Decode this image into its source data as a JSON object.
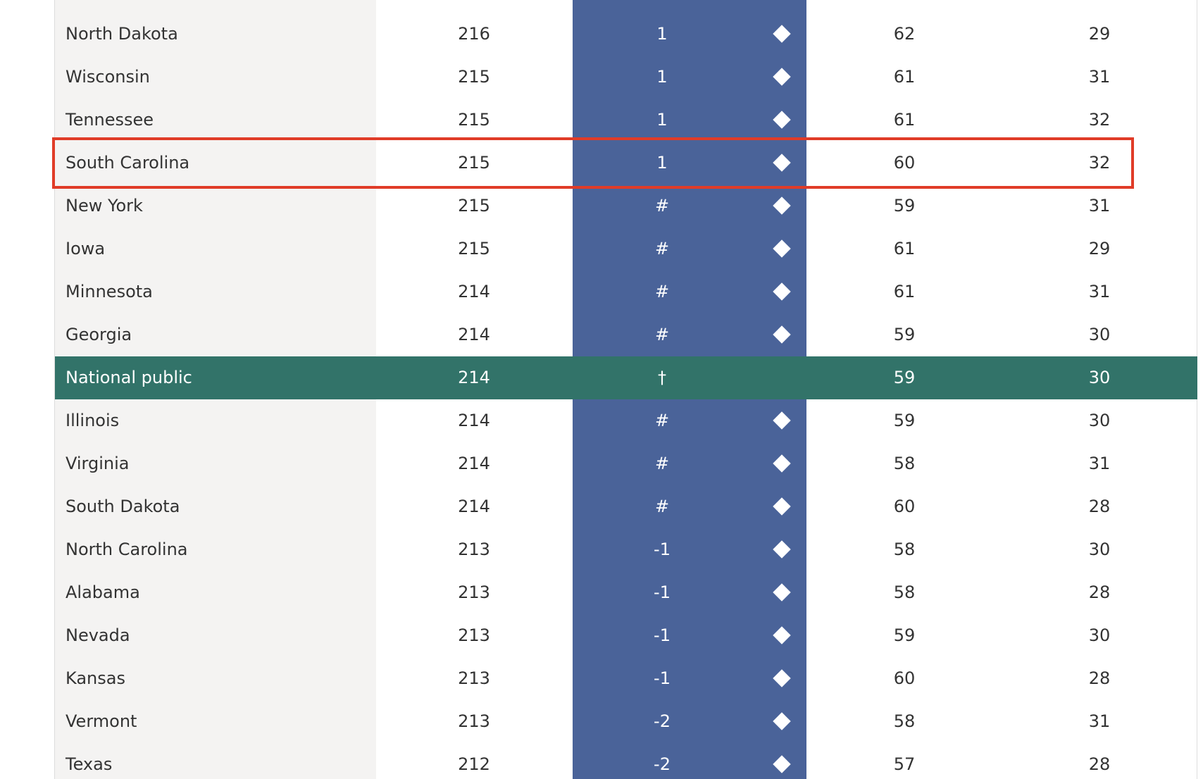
{
  "table": {
    "rows": [
      [
        "North Dakota",
        "216",
        "1",
        "62",
        "29"
      ],
      [
        "Wisconsin",
        "215",
        "1",
        "61",
        "31"
      ],
      [
        "Tennessee",
        "215",
        "1",
        "61",
        "32"
      ],
      [
        "South Carolina",
        "215",
        "1",
        "60",
        "32"
      ],
      [
        "New York",
        "215",
        "#",
        "59",
        "31"
      ],
      [
        "Iowa",
        "215",
        "#",
        "61",
        "29"
      ],
      [
        "Minnesota",
        "214",
        "#",
        "61",
        "31"
      ],
      [
        "Georgia",
        "214",
        "#",
        "59",
        "30"
      ],
      [
        "National public",
        "214",
        "†",
        "59",
        "30"
      ],
      [
        "Illinois",
        "214",
        "#",
        "59",
        "30"
      ],
      [
        "Virginia",
        "214",
        "#",
        "58",
        "31"
      ],
      [
        "South Dakota",
        "214",
        "#",
        "60",
        "28"
      ],
      [
        "North Carolina",
        "213",
        "-1",
        "58",
        "30"
      ],
      [
        "Alabama",
        "213",
        "-1",
        "58",
        "28"
      ],
      [
        "Nevada",
        "213",
        "-1",
        "59",
        "30"
      ],
      [
        "Kansas",
        "213",
        "-1",
        "60",
        "28"
      ],
      [
        "Vermont",
        "213",
        "-2",
        "58",
        "31"
      ],
      [
        "Texas",
        "212",
        "-2",
        "57",
        "28"
      ]
    ],
    "diamond": [
      true,
      true,
      true,
      true,
      true,
      true,
      true,
      true,
      false,
      true,
      true,
      true,
      true,
      true,
      true,
      true,
      true,
      true
    ],
    "national_row": 8,
    "highlighted_row": 3
  }
}
